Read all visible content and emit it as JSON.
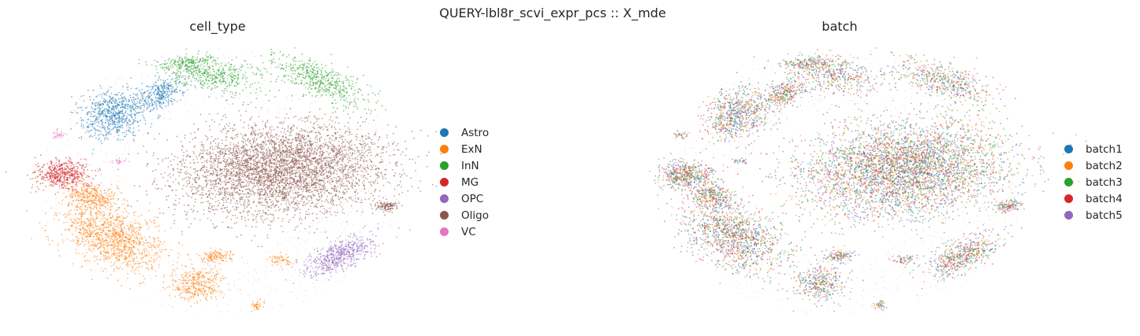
{
  "figure": {
    "suptitle": "QUERY-lbl8r_scvi_expr_pcs :: X_mde"
  },
  "chart_data": [
    {
      "type": "scatter",
      "title": "cell_type",
      "xlabel": "",
      "ylabel": "",
      "axes": "off",
      "legend_placement": "right",
      "categories": [
        {
          "name": "Astro",
          "color": "#1f77b4"
        },
        {
          "name": "ExN",
          "color": "#ff7f0e"
        },
        {
          "name": "InN",
          "color": "#2ca02c"
        },
        {
          "name": "MG",
          "color": "#d62728"
        },
        {
          "name": "OPC",
          "color": "#9467bd"
        },
        {
          "name": "Oligo",
          "color": "#8c564b"
        },
        {
          "name": "VC",
          "color": "#e377c2"
        }
      ]
    },
    {
      "type": "scatter",
      "title": "batch",
      "xlabel": "",
      "ylabel": "",
      "axes": "off",
      "legend_placement": "right",
      "categories": [
        {
          "name": "batch1",
          "color": "#1f77b4"
        },
        {
          "name": "batch2",
          "color": "#ff7f0e"
        },
        {
          "name": "batch3",
          "color": "#2ca02c"
        },
        {
          "name": "batch4",
          "color": "#d62728"
        },
        {
          "name": "batch5",
          "color": "#9467bd"
        }
      ]
    }
  ]
}
